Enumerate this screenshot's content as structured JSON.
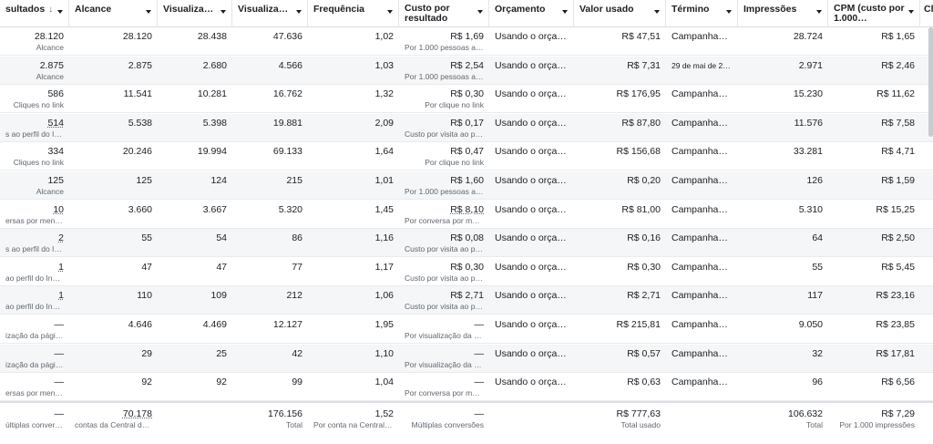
{
  "headers": {
    "resultados": "sultados",
    "alcance": "Alcance",
    "visualizacoes": "Visualizad…",
    "visualizacoes2": "Visualizaç…",
    "frequencia": "Frequência",
    "custo_por_resultado_line1": "Custo por",
    "custo_por_resultado_line2": "resultado",
    "orcamento": "Orçamento",
    "valor_usado": "Valor usado",
    "termino": "Término",
    "impressoes": "Impressões",
    "cpm_line1": "CPM (custo por",
    "cpm_line2": "1.000…",
    "next": "Cl"
  },
  "rows": [
    {
      "res": "28.120",
      "res_sub": "Alcance",
      "alc": "28.120",
      "vis": "28.438",
      "vis2": "47.636",
      "freq": "1,02",
      "custo": "R$ 1,69",
      "custo_sub": "Por 1.000 pessoas alc…",
      "orc": "Usando o orçam…",
      "valor": "R$ 47,51",
      "term": "Campanhas …",
      "imp": "28.724",
      "cpm": "R$ 1,65"
    },
    {
      "res": "2.875",
      "res_sub": "Alcance",
      "alc": "2.875",
      "vis": "2.680",
      "vis2": "4.566",
      "freq": "1,03",
      "custo": "R$ 2,54",
      "custo_sub": "Por 1.000 pessoas alc…",
      "orc": "Usando o orçam…",
      "valor": "R$ 7,31",
      "term": "29 de mai de 2…",
      "imp": "2.971",
      "cpm": "R$ 2,46"
    },
    {
      "res": "586",
      "res_sub": "Cliques no link",
      "alc": "11.541",
      "vis": "10.281",
      "vis2": "16.762",
      "freq": "1,32",
      "custo": "R$ 0,30",
      "custo_sub": "Por clique no link",
      "orc": "Usando o orçam…",
      "valor": "R$ 176,95",
      "term": "Campanhas …",
      "imp": "15.230",
      "cpm": "R$ 11,62"
    },
    {
      "res": "514",
      "res_sub": "s ao perfil do Inst…",
      "alc": "5.538",
      "vis": "5.398",
      "vis2": "19.881",
      "freq": "2,09",
      "custo": "R$ 0,17",
      "custo_sub": "Custo por visita ao pe…",
      "orc": "Usando o orçam…",
      "valor": "R$ 87,80",
      "term": "Campanhas …",
      "imp": "11.576",
      "cpm": "R$ 7,58"
    },
    {
      "res": "334",
      "res_sub": "Cliques no link",
      "alc": "20.246",
      "vis": "19.994",
      "vis2": "69.133",
      "freq": "1,64",
      "custo": "R$ 0,47",
      "custo_sub": "Por clique no link",
      "orc": "Usando o orçam…",
      "valor": "R$ 156,68",
      "term": "Campanhas …",
      "imp": "33.281",
      "cpm": "R$ 4,71"
    },
    {
      "res": "125",
      "res_sub": "Alcance",
      "alc": "125",
      "vis": "124",
      "vis2": "215",
      "freq": "1,01",
      "custo": "R$ 1,60",
      "custo_sub": "Por 1.000 pessoas alc…",
      "orc": "Usando o orçam…",
      "valor": "R$ 0,20",
      "term": "Campanhas …",
      "imp": "126",
      "cpm": "R$ 1,59"
    },
    {
      "res": "10",
      "res_sub": "ersas por mensa…",
      "alc": "3.660",
      "vis": "3.667",
      "vis2": "5.320",
      "freq": "1,45",
      "custo": "R$ 8,10",
      "custo_sub": "Por conversa por me…",
      "orc": "Usando o orçam…",
      "valor": "R$ 81,00",
      "term": "Campanhas …",
      "imp": "5.310",
      "cpm": "R$ 15,25"
    },
    {
      "res": "2",
      "res_sub": "s ao perfil do Inst…",
      "alc": "55",
      "vis": "54",
      "vis2": "86",
      "freq": "1,16",
      "custo": "R$ 0,08",
      "custo_sub": "Custo por visita ao pe…",
      "orc": "Usando o orçam…",
      "valor": "R$ 0,16",
      "term": "Campanhas …",
      "imp": "64",
      "cpm": "R$ 2,50"
    },
    {
      "res": "1",
      "res_sub": "ao perfil do Inst…",
      "alc": "47",
      "vis": "47",
      "vis2": "77",
      "freq": "1,17",
      "custo": "R$ 0,30",
      "custo_sub": "Custo por visita ao pe…",
      "orc": "Usando o orçam…",
      "valor": "R$ 0,30",
      "term": "Campanhas …",
      "imp": "55",
      "cpm": "R$ 5,45"
    },
    {
      "res": "1",
      "res_sub": "ao perfil do Inst…",
      "alc": "110",
      "vis": "109",
      "vis2": "212",
      "freq": "1,06",
      "custo": "R$ 2,71",
      "custo_sub": "Custo por visita ao pe…",
      "orc": "Usando o orçam…",
      "valor": "R$ 2,71",
      "term": "Campanhas …",
      "imp": "117",
      "cpm": "R$ 23,16"
    },
    {
      "res": "—",
      "res_sub": "ização da págin…",
      "alc": "4.646",
      "vis": "4.469",
      "vis2": "12.127",
      "freq": "1,95",
      "custo": "—",
      "custo_sub": "Por visualização da pá…",
      "orc": "Usando o orçam…",
      "valor": "R$ 215,81",
      "term": "Campanhas …",
      "imp": "9.050",
      "cpm": "R$ 23,85"
    },
    {
      "res": "—",
      "res_sub": "ização da págin…",
      "alc": "29",
      "vis": "25",
      "vis2": "42",
      "freq": "1,10",
      "custo": "—",
      "custo_sub": "Por visualização da pá…",
      "orc": "Usando o orçam…",
      "valor": "R$ 0,57",
      "term": "Campanhas …",
      "imp": "32",
      "cpm": "R$ 17,81"
    },
    {
      "res": "—",
      "res_sub": "ersas por mensag…",
      "alc": "92",
      "vis": "92",
      "vis2": "99",
      "freq": "1,04",
      "custo": "—",
      "custo_sub": "Por conversa por men…",
      "orc": "Usando o orçam…",
      "valor": "R$ 0,63",
      "term": "Campanhas …",
      "imp": "96",
      "cpm": "R$ 6,56"
    }
  ],
  "totals": {
    "res": "—",
    "res_sub": "últiplas conversões",
    "alc": "70.178",
    "alc_sub": "contas da Central de …",
    "vis2": "176.156",
    "vis2_sub": "Total",
    "freq": "1,52",
    "freq_sub": "Por conta na Central d…",
    "custo": "—",
    "custo_sub": "Múltiplas conversões",
    "valor": "R$ 777,63",
    "valor_sub": "Total usado",
    "imp": "106.632",
    "imp_sub": "Total",
    "cpm": "R$ 7,29",
    "cpm_sub": "Por 1.000 impressões"
  }
}
